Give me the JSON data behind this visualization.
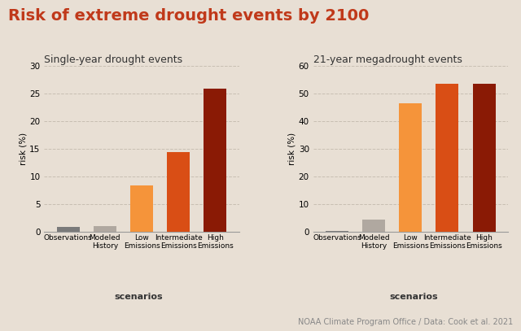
{
  "title": "Risk of extreme drought events by 2100",
  "title_color": "#c0391a",
  "title_fontsize": 14,
  "background_color": "#e8dfd4",
  "left_subtitle": "Single-year drought events",
  "right_subtitle": "21-year megadrought events",
  "left_categories": [
    "Observations",
    "Modeled\nHistory",
    "Low\nEmissions",
    "Intermediate\nEmissions",
    "High\nEmissions"
  ],
  "right_categories": [
    "Observations",
    "Modeled\nHistory",
    "Low\nEmissions",
    "Intermediate\nEmissions",
    "High\nEmissions"
  ],
  "left_values": [
    0.8,
    1.0,
    8.4,
    14.5,
    26.0
  ],
  "right_values": [
    0.2,
    4.5,
    46.5,
    53.5,
    53.5
  ],
  "left_colors": [
    "#7a7a7a",
    "#b0a8a0",
    "#f5943a",
    "#d94e15",
    "#8a1a05"
  ],
  "right_colors": [
    "#7a7a7a",
    "#b0a8a0",
    "#f5943a",
    "#d94e15",
    "#8a1a05"
  ],
  "left_ylim": [
    0,
    30
  ],
  "right_ylim": [
    0,
    60
  ],
  "left_yticks": [
    0,
    5,
    10,
    15,
    20,
    25,
    30
  ],
  "right_yticks": [
    0,
    10,
    20,
    30,
    40,
    50,
    60
  ],
  "ylabel": "risk (%)",
  "xlabel": "scenarios",
  "grid_color": "#c8bfb2",
  "spine_color": "#999999",
  "footer": "NOAA Climate Program Office / Data: Cook et al. 2021",
  "footer_color": "#888888",
  "footer_fontsize": 7,
  "subtitle_fontsize": 9,
  "tick_fontsize": 7.5,
  "xlabel_fontsize": 8,
  "ylabel_fontsize": 7.5,
  "xtick_fontsize": 6.5
}
